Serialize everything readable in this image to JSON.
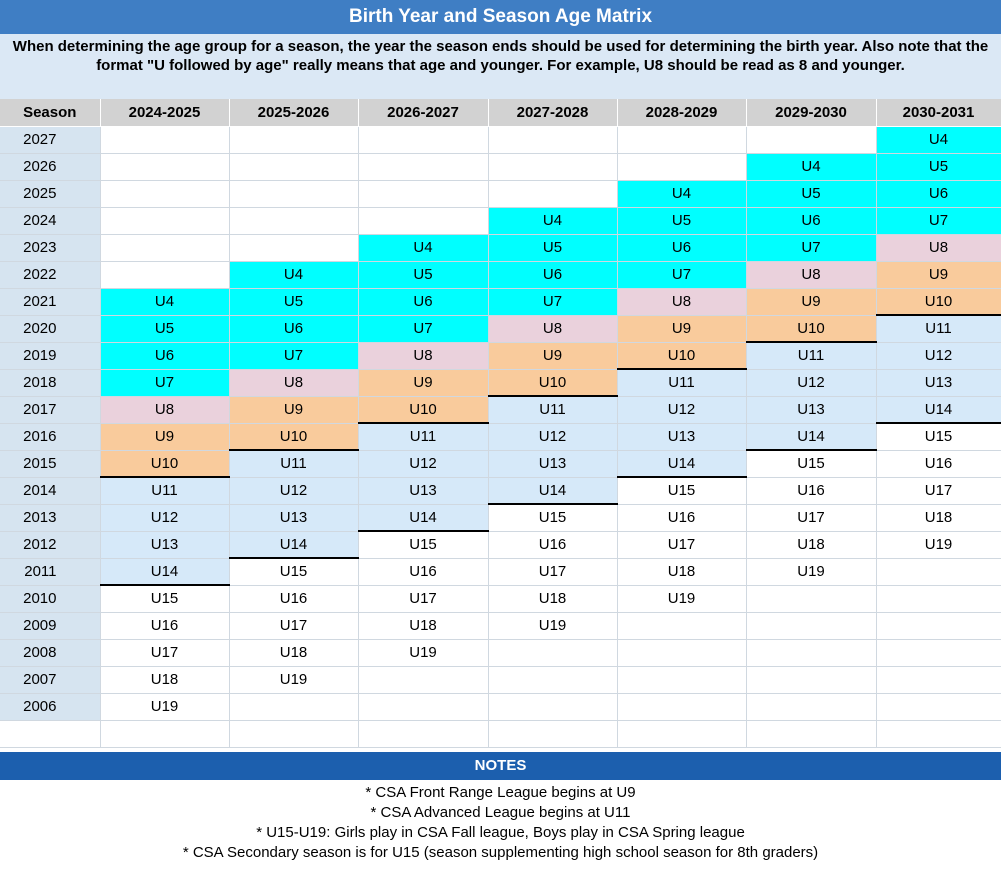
{
  "title": "Birth Year and Season Age Matrix",
  "intro": "When determining the age group for a season, the year the season ends should be used for determining the birth year. Also note that the format \"U followed by age\" really means that age and younger. For example, U8 should be read as 8 and younger.",
  "header": {
    "season_label": "Season",
    "seasons": [
      "2024-2025",
      "2025-2026",
      "2026-2027",
      "2027-2028",
      "2028-2029",
      "2029-2030",
      "2030-2031"
    ]
  },
  "rows": [
    {
      "year": "2027",
      "cells": [
        "",
        "",
        "",
        "",
        "",
        "",
        "U4"
      ]
    },
    {
      "year": "2026",
      "cells": [
        "",
        "",
        "",
        "",
        "",
        "U4",
        "U5"
      ]
    },
    {
      "year": "2025",
      "cells": [
        "",
        "",
        "",
        "",
        "U4",
        "U5",
        "U6"
      ]
    },
    {
      "year": "2024",
      "cells": [
        "",
        "",
        "",
        "U4",
        "U5",
        "U6",
        "U7"
      ]
    },
    {
      "year": "2023",
      "cells": [
        "",
        "",
        "U4",
        "U5",
        "U6",
        "U7",
        "U8"
      ]
    },
    {
      "year": "2022",
      "cells": [
        "",
        "U4",
        "U5",
        "U6",
        "U7",
        "U8",
        "U9"
      ]
    },
    {
      "year": "2021",
      "cells": [
        "U4",
        "U5",
        "U6",
        "U7",
        "U8",
        "U9",
        "U10"
      ]
    },
    {
      "year": "2020",
      "cells": [
        "U5",
        "U6",
        "U7",
        "U8",
        "U9",
        "U10",
        "U11"
      ]
    },
    {
      "year": "2019",
      "cells": [
        "U6",
        "U7",
        "U8",
        "U9",
        "U10",
        "U11",
        "U12"
      ]
    },
    {
      "year": "2018",
      "cells": [
        "U7",
        "U8",
        "U9",
        "U10",
        "U11",
        "U12",
        "U13"
      ]
    },
    {
      "year": "2017",
      "cells": [
        "U8",
        "U9",
        "U10",
        "U11",
        "U12",
        "U13",
        "U14"
      ]
    },
    {
      "year": "2016",
      "cells": [
        "U9",
        "U10",
        "U11",
        "U12",
        "U13",
        "U14",
        "U15"
      ]
    },
    {
      "year": "2015",
      "cells": [
        "U10",
        "U11",
        "U12",
        "U13",
        "U14",
        "U15",
        "U16"
      ]
    },
    {
      "year": "2014",
      "cells": [
        "U11",
        "U12",
        "U13",
        "U14",
        "U15",
        "U16",
        "U17"
      ]
    },
    {
      "year": "2013",
      "cells": [
        "U12",
        "U13",
        "U14",
        "U15",
        "U16",
        "U17",
        "U18"
      ]
    },
    {
      "year": "2012",
      "cells": [
        "U13",
        "U14",
        "U15",
        "U16",
        "U17",
        "U18",
        "U19"
      ]
    },
    {
      "year": "2011",
      "cells": [
        "U14",
        "U15",
        "U16",
        "U17",
        "U18",
        "U19",
        ""
      ]
    },
    {
      "year": "2010",
      "cells": [
        "U15",
        "U16",
        "U17",
        "U18",
        "U19",
        "",
        ""
      ]
    },
    {
      "year": "2009",
      "cells": [
        "U16",
        "U17",
        "U18",
        "U19",
        "",
        "",
        ""
      ]
    },
    {
      "year": "2008",
      "cells": [
        "U17",
        "U18",
        "U19",
        "",
        "",
        "",
        ""
      ]
    },
    {
      "year": "2007",
      "cells": [
        "U18",
        "U19",
        "",
        "",
        "",
        "",
        ""
      ]
    },
    {
      "year": "2006",
      "cells": [
        "U19",
        "",
        "",
        "",
        "",
        "",
        ""
      ]
    }
  ],
  "colors": {
    "title_bar": "#3f7ec4",
    "u4_u7": "#00ffff",
    "u8": "#ead1dc",
    "u9_u10": "#f9cb9c",
    "u11_u14": "#d6e9f9",
    "notes_bar": "#1c5fae"
  },
  "notes": {
    "heading": "NOTES",
    "items": [
      "* CSA Front Range League begins at U9",
      "* CSA Advanced League begins at U11",
      "* U15-U19:  Girls play in CSA Fall league, Boys play in CSA Spring league",
      "* CSA Secondary season is for U15 (season supplementing high school season for 8th graders)"
    ]
  }
}
